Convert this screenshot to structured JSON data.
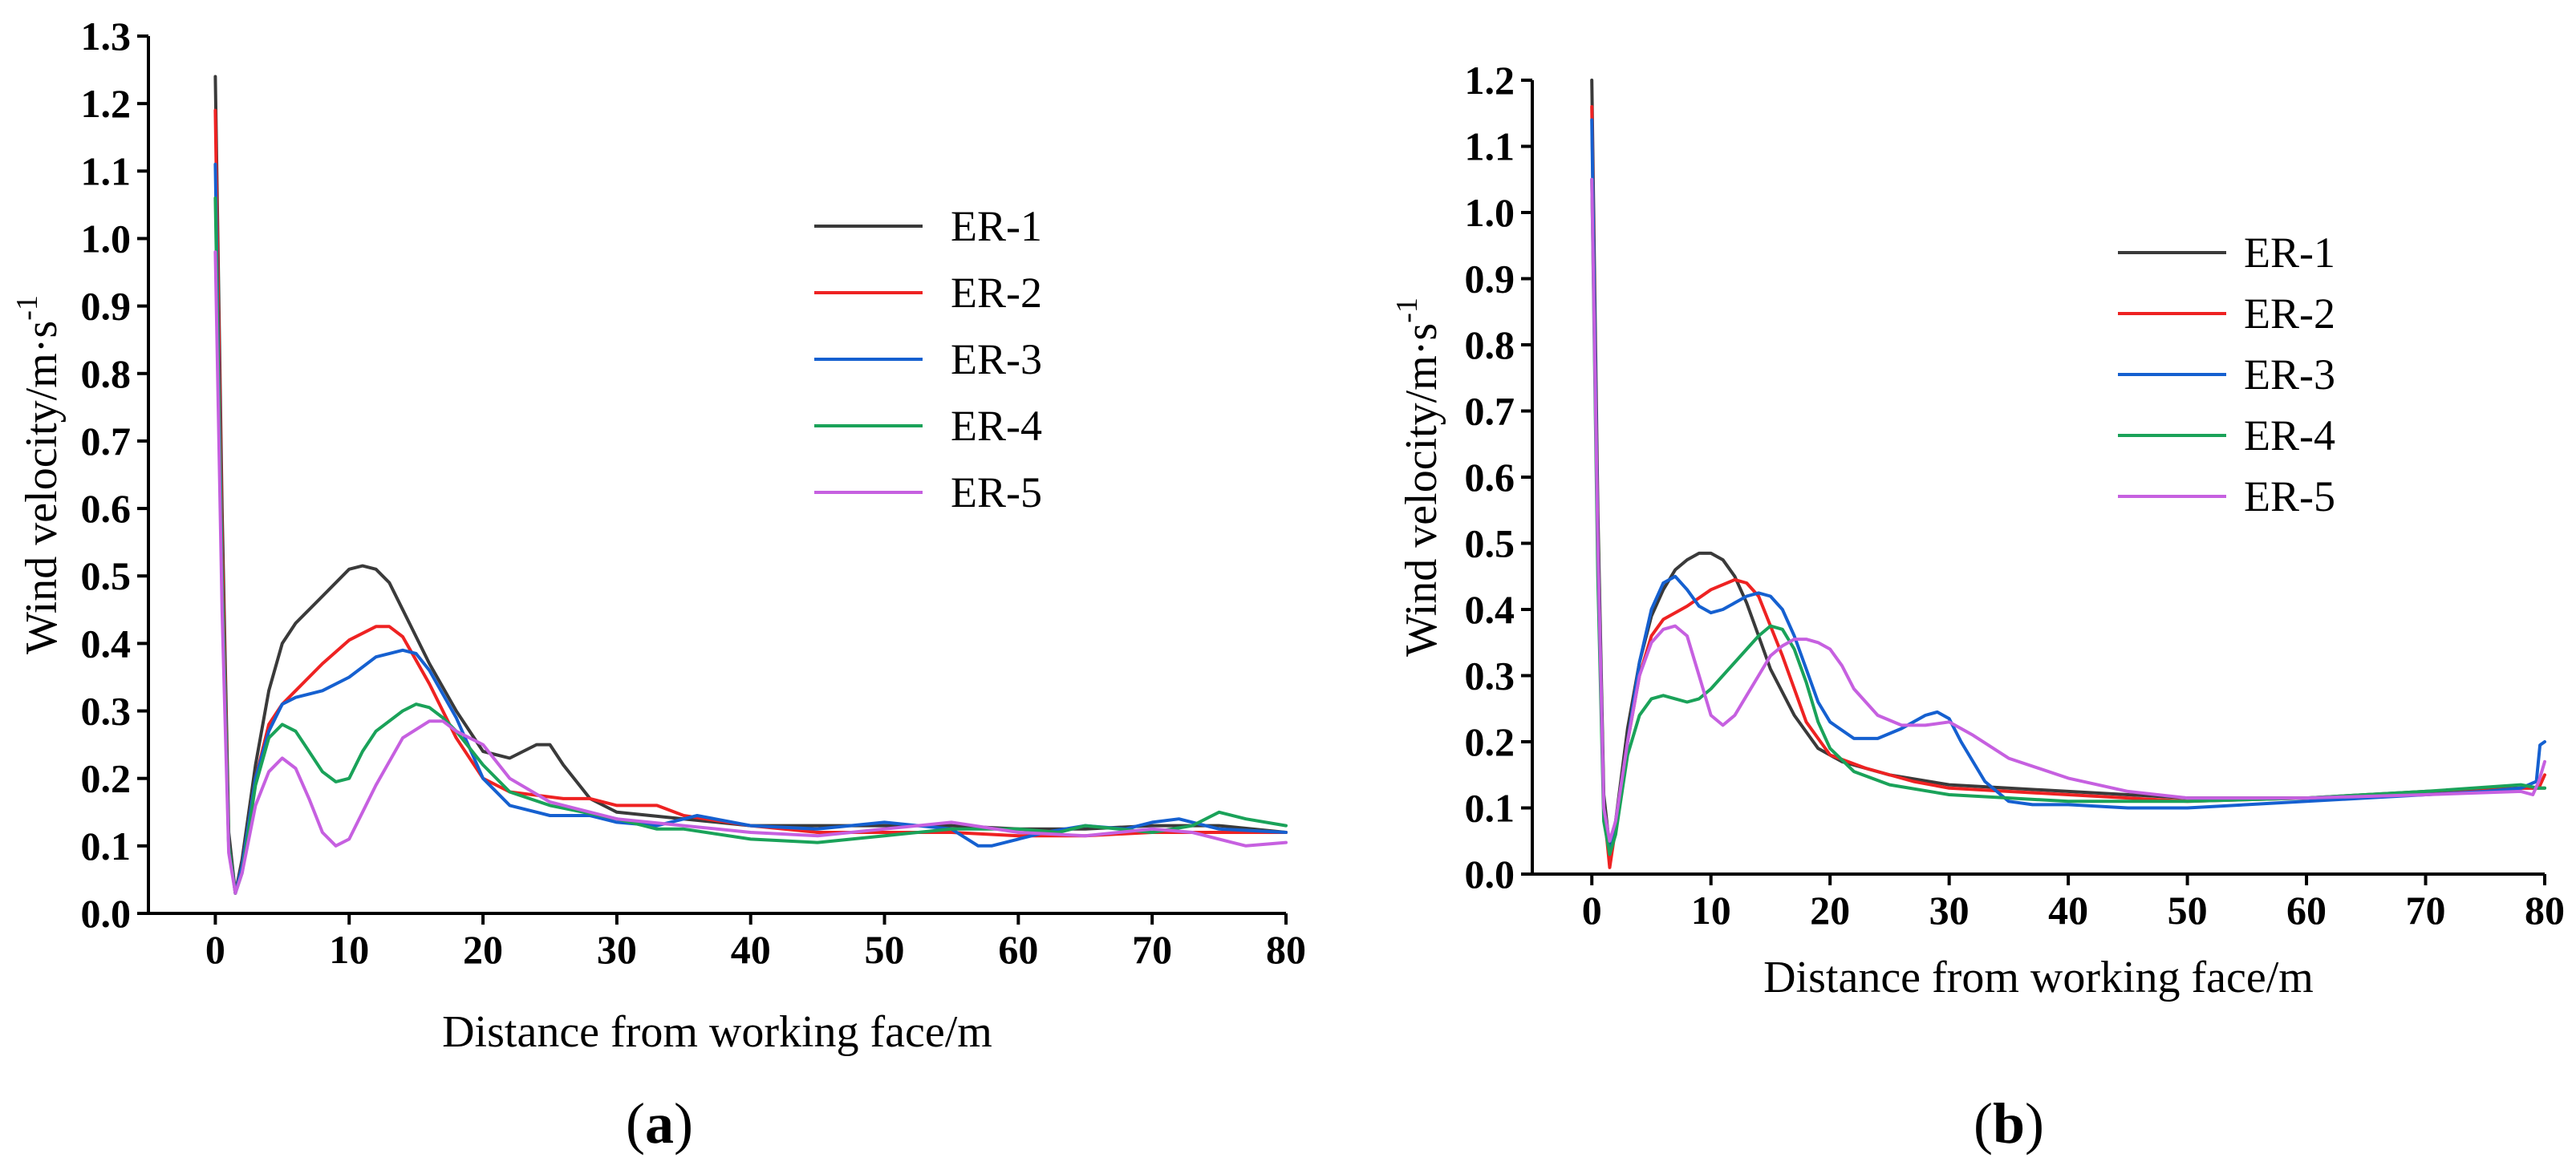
{
  "chart_data": [
    {
      "type": "line",
      "panel_label": "a",
      "xlabel": "Distance from working face/m",
      "ylabel": "Wind velocity/m·s",
      "ylabel_superscript": "-1",
      "xlim": [
        -5,
        80
      ],
      "ylim": [
        0,
        1.3
      ],
      "x_ticks": [
        0,
        10,
        20,
        30,
        40,
        50,
        60,
        70,
        80
      ],
      "y_ticks": [
        0.0,
        0.1,
        0.2,
        0.3,
        0.4,
        0.5,
        0.6,
        0.7,
        0.8,
        0.9,
        1.0,
        1.1,
        1.2,
        1.3
      ],
      "grid": false,
      "legend_position": "top-right",
      "series": [
        {
          "name": "ER-1",
          "color": "#3a3a3a",
          "x": [
            0,
            0.5,
            1,
            1.5,
            2,
            3,
            4,
            5,
            6,
            8,
            10,
            11,
            12,
            13,
            14,
            16,
            18,
            20,
            22,
            24,
            25,
            26,
            28,
            30,
            35,
            40,
            45,
            50,
            55,
            60,
            65,
            70,
            75,
            80
          ],
          "y": [
            1.24,
            0.6,
            0.12,
            0.03,
            0.08,
            0.22,
            0.33,
            0.4,
            0.43,
            0.47,
            0.51,
            0.515,
            0.51,
            0.49,
            0.45,
            0.37,
            0.3,
            0.24,
            0.23,
            0.25,
            0.25,
            0.22,
            0.17,
            0.15,
            0.14,
            0.13,
            0.13,
            0.13,
            0.13,
            0.125,
            0.125,
            0.13,
            0.13,
            0.12
          ]
        },
        {
          "name": "ER-2",
          "color": "#ee2222",
          "x": [
            0,
            0.5,
            1,
            1.5,
            2,
            3,
            4,
            5,
            6,
            8,
            10,
            12,
            13,
            14,
            16,
            18,
            20,
            22,
            24,
            26,
            28,
            30,
            33,
            35,
            40,
            45,
            50,
            55,
            60,
            65,
            70,
            75,
            80
          ],
          "y": [
            1.19,
            0.55,
            0.1,
            0.03,
            0.07,
            0.2,
            0.28,
            0.31,
            0.33,
            0.37,
            0.405,
            0.425,
            0.425,
            0.41,
            0.34,
            0.26,
            0.2,
            0.18,
            0.175,
            0.17,
            0.17,
            0.16,
            0.16,
            0.145,
            0.13,
            0.12,
            0.12,
            0.12,
            0.115,
            0.115,
            0.12,
            0.12,
            0.12
          ]
        },
        {
          "name": "ER-3",
          "color": "#1560d0",
          "x": [
            0,
            0.5,
            1,
            1.5,
            2,
            3,
            4,
            5,
            6,
            8,
            10,
            12,
            14,
            15,
            16,
            18,
            20,
            22,
            25,
            28,
            30,
            33,
            36,
            40,
            45,
            50,
            55,
            57,
            58,
            60,
            62,
            65,
            68,
            70,
            72,
            75,
            80
          ],
          "y": [
            1.11,
            0.5,
            0.1,
            0.03,
            0.07,
            0.2,
            0.27,
            0.31,
            0.32,
            0.33,
            0.35,
            0.38,
            0.39,
            0.385,
            0.36,
            0.29,
            0.2,
            0.16,
            0.145,
            0.145,
            0.135,
            0.13,
            0.145,
            0.13,
            0.125,
            0.135,
            0.125,
            0.1,
            0.1,
            0.11,
            0.12,
            0.13,
            0.125,
            0.135,
            0.14,
            0.125,
            0.12
          ]
        },
        {
          "name": "ER-4",
          "color": "#1aa259",
          "x": [
            0,
            0.5,
            1,
            1.5,
            2,
            3,
            4,
            5,
            6,
            7,
            8,
            9,
            10,
            11,
            12,
            14,
            15,
            16,
            17,
            18,
            20,
            22,
            25,
            30,
            33,
            35,
            40,
            45,
            50,
            55,
            60,
            63,
            65,
            70,
            73,
            75,
            77,
            80
          ],
          "y": [
            1.06,
            0.5,
            0.1,
            0.03,
            0.06,
            0.19,
            0.26,
            0.28,
            0.27,
            0.24,
            0.21,
            0.195,
            0.2,
            0.24,
            0.27,
            0.3,
            0.31,
            0.305,
            0.29,
            0.27,
            0.22,
            0.18,
            0.16,
            0.14,
            0.125,
            0.125,
            0.11,
            0.105,
            0.115,
            0.125,
            0.125,
            0.12,
            0.13,
            0.12,
            0.13,
            0.15,
            0.14,
            0.13
          ]
        },
        {
          "name": "ER-5",
          "color": "#c660e0",
          "x": [
            0,
            0.5,
            1,
            1.5,
            2,
            3,
            4,
            5,
            6,
            7,
            8,
            9,
            10,
            11,
            12,
            14,
            16,
            17,
            18,
            20,
            22,
            25,
            30,
            35,
            40,
            45,
            50,
            55,
            60,
            65,
            70,
            73,
            75,
            77,
            80
          ],
          "y": [
            0.98,
            0.45,
            0.09,
            0.03,
            0.06,
            0.16,
            0.21,
            0.23,
            0.215,
            0.17,
            0.12,
            0.1,
            0.11,
            0.15,
            0.19,
            0.26,
            0.285,
            0.285,
            0.27,
            0.25,
            0.2,
            0.165,
            0.14,
            0.13,
            0.12,
            0.115,
            0.125,
            0.135,
            0.12,
            0.115,
            0.125,
            0.12,
            0.11,
            0.1,
            0.105
          ]
        }
      ]
    },
    {
      "type": "line",
      "panel_label": "b",
      "xlabel": "Distance from working face/m",
      "ylabel": "Wind velocity/m·s",
      "ylabel_superscript": "-1",
      "xlim": [
        -5,
        80
      ],
      "ylim": [
        0,
        1.2
      ],
      "x_ticks": [
        0,
        10,
        20,
        30,
        40,
        50,
        60,
        70,
        80
      ],
      "y_ticks": [
        0.0,
        0.1,
        0.2,
        0.3,
        0.4,
        0.5,
        0.6,
        0.7,
        0.8,
        0.9,
        1.0,
        1.1,
        1.2
      ],
      "grid": false,
      "legend_position": "top-right",
      "series": [
        {
          "name": "ER-1",
          "color": "#3a3a3a",
          "x": [
            0,
            0.5,
            1,
            1.5,
            2,
            3,
            4,
            5,
            6,
            7,
            8,
            9,
            10,
            11,
            12,
            13,
            14,
            15,
            17,
            19,
            21,
            25,
            30,
            40,
            50,
            60,
            70,
            78,
            79.5,
            80
          ],
          "y": [
            1.2,
            0.55,
            0.12,
            0.04,
            0.08,
            0.22,
            0.32,
            0.39,
            0.43,
            0.46,
            0.475,
            0.485,
            0.485,
            0.475,
            0.45,
            0.41,
            0.36,
            0.31,
            0.24,
            0.19,
            0.17,
            0.15,
            0.135,
            0.125,
            0.115,
            0.115,
            0.125,
            0.13,
            0.13,
            0.13
          ]
        },
        {
          "name": "ER-2",
          "color": "#ee2222",
          "x": [
            0,
            0.5,
            1,
            1.5,
            2,
            3,
            4,
            5,
            6,
            8,
            10,
            12,
            13,
            14,
            16,
            18,
            20,
            23,
            27,
            30,
            40,
            50,
            60,
            70,
            78,
            79.5,
            80
          ],
          "y": [
            1.16,
            0.5,
            0.1,
            0.01,
            0.07,
            0.2,
            0.3,
            0.36,
            0.385,
            0.405,
            0.43,
            0.445,
            0.44,
            0.42,
            0.33,
            0.23,
            0.18,
            0.16,
            0.14,
            0.13,
            0.12,
            0.11,
            0.115,
            0.12,
            0.13,
            0.13,
            0.15
          ]
        },
        {
          "name": "ER-3",
          "color": "#1560d0",
          "x": [
            0,
            0.5,
            1,
            1.5,
            2,
            3,
            4,
            5,
            6,
            7,
            8,
            9,
            10,
            11,
            12,
            13,
            14,
            15,
            16,
            17,
            18,
            19,
            20,
            22,
            24,
            26,
            28,
            29,
            30,
            31,
            33,
            35,
            37,
            40,
            45,
            50,
            55,
            60,
            65,
            70,
            75,
            78,
            79.3,
            79.6,
            80
          ],
          "y": [
            1.14,
            0.5,
            0.1,
            0.03,
            0.07,
            0.2,
            0.32,
            0.4,
            0.44,
            0.45,
            0.43,
            0.405,
            0.395,
            0.4,
            0.41,
            0.42,
            0.425,
            0.42,
            0.4,
            0.36,
            0.31,
            0.26,
            0.23,
            0.205,
            0.205,
            0.22,
            0.24,
            0.245,
            0.235,
            0.2,
            0.14,
            0.11,
            0.105,
            0.105,
            0.1,
            0.1,
            0.105,
            0.11,
            0.115,
            0.12,
            0.125,
            0.13,
            0.14,
            0.195,
            0.2
          ]
        },
        {
          "name": "ER-4",
          "color": "#1aa259",
          "x": [
            0,
            0.5,
            1,
            1.5,
            2,
            3,
            4,
            5,
            6,
            7,
            8,
            9,
            10,
            12,
            14,
            15,
            16,
            17,
            18,
            19,
            20,
            22,
            25,
            30,
            35,
            40,
            50,
            60,
            70,
            78,
            79.5,
            80
          ],
          "y": [
            1.05,
            0.45,
            0.08,
            0.03,
            0.06,
            0.18,
            0.24,
            0.265,
            0.27,
            0.265,
            0.26,
            0.265,
            0.28,
            0.32,
            0.36,
            0.375,
            0.37,
            0.34,
            0.29,
            0.23,
            0.19,
            0.155,
            0.135,
            0.12,
            0.115,
            0.11,
            0.11,
            0.115,
            0.125,
            0.135,
            0.13,
            0.13
          ]
        },
        {
          "name": "ER-5",
          "color": "#c660e0",
          "x": [
            0,
            0.5,
            1,
            1.5,
            2,
            3,
            4,
            5,
            6,
            7,
            8,
            9,
            10,
            11,
            12,
            13,
            14,
            15,
            16,
            17,
            18,
            19,
            20,
            21,
            22,
            24,
            26,
            28,
            30,
            32,
            35,
            40,
            45,
            50,
            55,
            60,
            70,
            78,
            79,
            79.5,
            80
          ],
          "y": [
            1.05,
            0.5,
            0.1,
            0.05,
            0.08,
            0.2,
            0.3,
            0.35,
            0.37,
            0.375,
            0.36,
            0.3,
            0.24,
            0.225,
            0.24,
            0.27,
            0.3,
            0.33,
            0.345,
            0.355,
            0.355,
            0.35,
            0.34,
            0.315,
            0.28,
            0.24,
            0.225,
            0.225,
            0.23,
            0.21,
            0.175,
            0.145,
            0.125,
            0.115,
            0.115,
            0.115,
            0.12,
            0.125,
            0.12,
            0.14,
            0.17
          ]
        }
      ]
    }
  ]
}
